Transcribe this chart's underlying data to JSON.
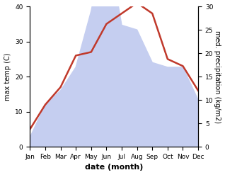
{
  "months": [
    "Jan",
    "Feb",
    "Mar",
    "Apr",
    "May",
    "Jun",
    "Jul",
    "Aug",
    "Sep",
    "Oct",
    "Nov",
    "Dec"
  ],
  "temperature": [
    5,
    12,
    17,
    26,
    27,
    35,
    38,
    41,
    38,
    25,
    23,
    16
  ],
  "precipitation": [
    2,
    9,
    12,
    17,
    29,
    45,
    26,
    25,
    18,
    17,
    17,
    10
  ],
  "temp_color": "#c0392b",
  "precip_fill_color": "#c5cef0",
  "left_ylim": [
    0,
    40
  ],
  "right_ylim": [
    0,
    30
  ],
  "left_yticks": [
    0,
    10,
    20,
    30,
    40
  ],
  "right_yticks": [
    0,
    5,
    10,
    15,
    20,
    25,
    30
  ],
  "ylabel_left": "max temp (C)",
  "ylabel_right": "med. precipitation (kg/m2)",
  "xlabel": "date (month)",
  "figsize": [
    3.18,
    2.47
  ],
  "dpi": 100
}
